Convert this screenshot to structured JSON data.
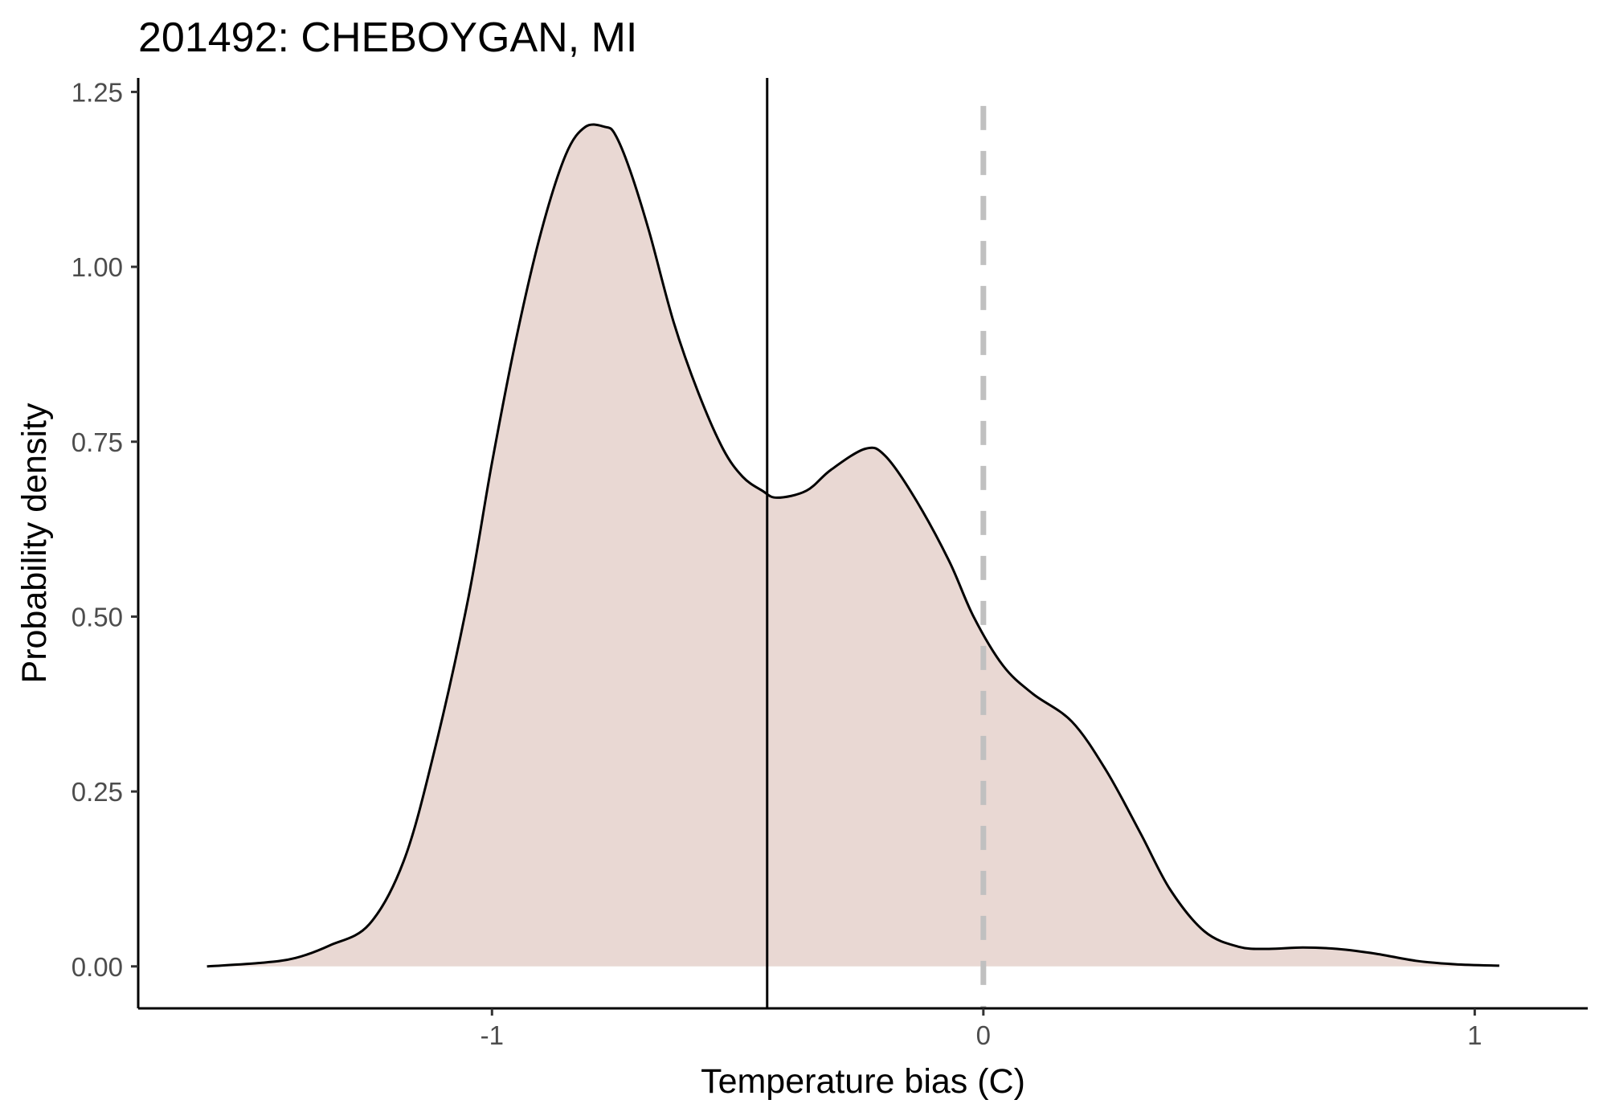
{
  "chart_data": {
    "type": "area",
    "title": "201492: CHEBOYGAN, MI",
    "xlabel": "Temperature bias (C)",
    "ylabel": "Probability density",
    "xlim": [
      -1.72,
      1.23
    ],
    "ylim": [
      -0.06,
      1.27
    ],
    "x_ticks": [
      -1,
      0,
      1
    ],
    "x_tick_labels": [
      "-1",
      "0",
      "1"
    ],
    "y_ticks": [
      0,
      0.25,
      0.5,
      0.75,
      1.0,
      1.25
    ],
    "y_tick_labels": [
      "0.00",
      "0.25",
      "0.50",
      "0.75",
      "1.00",
      "1.25"
    ],
    "grid": false,
    "colors": {
      "fill": "#e9d8d3",
      "line": "#000000",
      "mean_line": "#000000",
      "zero_line": "#c0c0c0"
    },
    "series": [
      {
        "x": [
          -1.58,
          -1.47,
          -1.4,
          -1.33,
          -1.25,
          -1.18,
          -1.12,
          -1.05,
          -1.0,
          -0.95,
          -0.9,
          -0.85,
          -0.81,
          -0.77,
          -0.75,
          -0.72,
          -0.68,
          -0.63,
          -0.58,
          -0.53,
          -0.49,
          -0.45,
          -0.42,
          -0.36,
          -0.31,
          -0.24,
          -0.2,
          -0.14,
          -0.07,
          -0.02,
          0.04,
          0.1,
          0.18,
          0.25,
          0.32,
          0.38,
          0.45,
          0.52,
          0.58,
          0.65,
          0.72,
          0.8,
          0.88,
          0.96,
          1.05
        ],
        "y": [
          0.0,
          0.005,
          0.012,
          0.03,
          0.06,
          0.15,
          0.3,
          0.52,
          0.72,
          0.9,
          1.05,
          1.16,
          1.2,
          1.2,
          1.19,
          1.14,
          1.05,
          0.92,
          0.82,
          0.74,
          0.7,
          0.68,
          0.67,
          0.68,
          0.71,
          0.74,
          0.73,
          0.67,
          0.58,
          0.5,
          0.43,
          0.39,
          0.35,
          0.28,
          0.19,
          0.11,
          0.05,
          0.028,
          0.025,
          0.027,
          0.025,
          0.018,
          0.008,
          0.003,
          0.001
        ]
      }
    ],
    "vlines": [
      {
        "x": -0.44,
        "style": "solid"
      },
      {
        "x": 0.0,
        "style": "dashed"
      }
    ]
  }
}
